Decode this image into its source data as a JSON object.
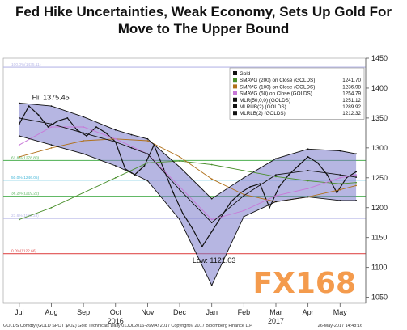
{
  "title_line1": "Fed Hike Uncertainties, Weak Economy, Sets Up Gold For",
  "title_line2": "Move to The Upper Bound",
  "chart_data": {
    "type": "line",
    "title": "Fed Hike Uncertainties, Weak Economy, Sets Up Gold For Move to The Upper Bound",
    "x_labels": [
      "Jul",
      "Aug",
      "Sep",
      "Oct",
      "Nov",
      "Dec",
      "Jan",
      "Feb",
      "Mar",
      "Apr",
      "May"
    ],
    "year_labels": [
      {
        "label": "2016",
        "month": "Oct"
      },
      {
        "label": "2017",
        "month": "Mar"
      }
    ],
    "ylim": [
      1040,
      1450
    ],
    "y_ticks": [
      1050,
      1100,
      1150,
      1200,
      1250,
      1300,
      1350,
      1400,
      1450
    ],
    "grid": false,
    "legend_position": "top-right",
    "legend": [
      {
        "name": "Gold",
        "value": "",
        "color": "#111111"
      },
      {
        "name": "SMAVG (200) on Close (GOLDS)",
        "value": "1241.70",
        "color": "#4a8f2c"
      },
      {
        "name": "SMAVG (100) on Close (GOLDS)",
        "value": "1236.98",
        "color": "#b0701a"
      },
      {
        "name": "SMAVG (50) on Close (GOLDS)",
        "value": "1254.79",
        "color": "#c878d8"
      },
      {
        "name": "MLR(50,0,0) (GOLDS)",
        "value": "1251.12",
        "color": "#111111"
      },
      {
        "name": "MLRUB(2) (GOLDS)",
        "value": "1289.92",
        "color": "#111111"
      },
      {
        "name": "MLRLB(2) (GOLDS)",
        "value": "1212.32",
        "color": "#111111"
      }
    ],
    "fib_levels": [
      {
        "label": "100.0%(1435.11)",
        "value": 1435,
        "color": "#b8b8e8"
      },
      {
        "label": "61.8%(1278.80)",
        "value": 1279,
        "color": "#4caf50"
      },
      {
        "label": "50.0%(1246.05)",
        "value": 1246,
        "color": "#45b7d8"
      },
      {
        "label": "38.2%(1219.22)",
        "value": 1219,
        "color": "#4caf50"
      },
      {
        "label": "23.6%(1182.33)",
        "value": 1182,
        "color": "#b8b8e8"
      },
      {
        "label": "0.0%(1122.66)",
        "value": 1123,
        "color": "#e05050"
      }
    ],
    "annotations": [
      {
        "text": "Hi: 1375.45",
        "x": 0.5,
        "y": 1375
      },
      {
        "text": "Low: 1121.03",
        "x": 5.5,
        "y": 1121
      }
    ],
    "series": [
      {
        "name": "Gold",
        "x": [
          0,
          0.3,
          0.6,
          0.9,
          1.2,
          1.5,
          1.8,
          2.1,
          2.4,
          2.7,
          3.0,
          3.3,
          3.6,
          3.9,
          4.2,
          4.5,
          4.8,
          5.1,
          5.4,
          5.7,
          6.0,
          6.3,
          6.6,
          6.9,
          7.2,
          7.5,
          7.8,
          8.1,
          8.4,
          8.7,
          9.0,
          9.3,
          9.6,
          9.9,
          10.2,
          10.5
        ],
        "values": [
          1340,
          1370,
          1355,
          1335,
          1345,
          1350,
          1330,
          1320,
          1335,
          1325,
          1310,
          1265,
          1255,
          1270,
          1305,
          1265,
          1225,
          1190,
          1165,
          1135,
          1160,
          1185,
          1210,
          1225,
          1235,
          1240,
          1200,
          1235,
          1255,
          1270,
          1285,
          1275,
          1255,
          1225,
          1250,
          1260
        ]
      },
      {
        "name": "SMAVG (200) on Close (GOLDS)",
        "x": [
          0,
          1,
          2,
          3,
          4,
          5,
          6,
          7,
          8,
          9,
          10,
          10.5
        ],
        "values": [
          1180,
          1200,
          1225,
          1250,
          1275,
          1278,
          1272,
          1262,
          1252,
          1245,
          1240,
          1242
        ]
      },
      {
        "name": "SMAVG (100) on Close (GOLDS)",
        "x": [
          0,
          1,
          2,
          3,
          4,
          5,
          6,
          7,
          8,
          9,
          10,
          10.5
        ],
        "values": [
          1285,
          1300,
          1312,
          1315,
          1312,
          1285,
          1248,
          1222,
          1210,
          1218,
          1230,
          1237
        ]
      },
      {
        "name": "SMAVG (50) on Close (GOLDS)",
        "x": [
          0,
          1,
          2,
          3,
          4,
          5,
          6,
          7,
          8,
          9,
          10,
          10.5
        ],
        "values": [
          1305,
          1335,
          1335,
          1315,
          1290,
          1235,
          1180,
          1195,
          1220,
          1232,
          1250,
          1255
        ]
      },
      {
        "name": "MLR(50,0,0) (GOLDS)",
        "x": [
          0,
          1,
          2,
          3,
          3.5,
          4.0,
          5,
          6,
          7,
          8,
          9,
          10,
          10.5
        ],
        "values": [
          1350,
          1340,
          1325,
          1310,
          1300,
          1290,
          1230,
          1175,
          1220,
          1255,
          1262,
          1255,
          1251
        ]
      },
      {
        "name": "MLRUB(2) (GOLDS)",
        "x": [
          0,
          1,
          2,
          3,
          3.5,
          4.0,
          5,
          6,
          7,
          8,
          9,
          10,
          10.5
        ],
        "values": [
          1375,
          1370,
          1352,
          1330,
          1322,
          1315,
          1268,
          1215,
          1250,
          1282,
          1298,
          1295,
          1290
        ]
      },
      {
        "name": "MLRLB(2) (GOLDS)",
        "x": [
          0,
          1,
          2,
          3,
          3.5,
          4.0,
          5,
          6,
          7,
          8,
          9,
          10,
          10.5
        ],
        "values": [
          1320,
          1305,
          1290,
          1270,
          1258,
          1245,
          1180,
          1070,
          1185,
          1210,
          1218,
          1212,
          1212
        ]
      }
    ]
  },
  "watermark": "FX168",
  "footer_left": "GOLDS Comdty (GOLD SPOT $/OZ) Gold Technicals Daily 01JUL2016-26MAY2017",
  "footer_mid": "Copyright© 2017 Bloomberg Finance L.P.",
  "footer_right": "26-May-2017 14:48:16"
}
